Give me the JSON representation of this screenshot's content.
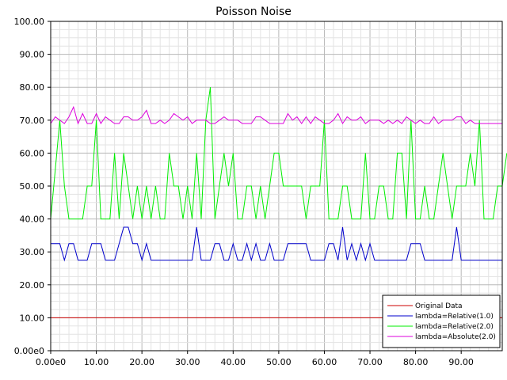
{
  "chart_data": {
    "type": "line",
    "title": "Poisson Noise",
    "xlabel": "",
    "ylabel": "",
    "xlim": [
      0,
      99
    ],
    "ylim": [
      0,
      100
    ],
    "x_ticks": [
      0,
      10,
      20,
      30,
      40,
      50,
      60,
      70,
      80,
      90
    ],
    "x_tick_labels": [
      "0.00e0",
      "10.00",
      "20.00",
      "30.00",
      "40.00",
      "50.00",
      "60.00",
      "70.00",
      "80.00",
      "90.00"
    ],
    "y_ticks": [
      0,
      10,
      20,
      30,
      40,
      50,
      60,
      70,
      80,
      90,
      100
    ],
    "y_tick_labels": [
      "0.00e0",
      "10.00",
      "20.00",
      "30.00",
      "40.00",
      "50.00",
      "60.00",
      "70.00",
      "80.00",
      "90.00",
      "100.00"
    ],
    "grid": true,
    "legend_position": "bottom-right",
    "series": [
      {
        "name": "Original Data",
        "color": "#cc0000",
        "values": [
          10,
          10,
          10,
          10,
          10,
          10,
          10,
          10,
          10,
          10,
          10,
          10,
          10,
          10,
          10,
          10,
          10,
          10,
          10,
          10,
          10,
          10,
          10,
          10,
          10,
          10,
          10,
          10,
          10,
          10,
          10,
          10,
          10,
          10,
          10,
          10,
          10,
          10,
          10,
          10,
          10,
          10,
          10,
          10,
          10,
          10,
          10,
          10,
          10,
          10,
          10,
          10,
          10,
          10,
          10,
          10,
          10,
          10,
          10,
          10,
          10,
          10,
          10,
          10,
          10,
          10,
          10,
          10,
          10,
          10,
          10,
          10,
          10,
          10,
          10,
          10,
          10,
          10,
          10,
          10,
          10,
          10,
          10,
          10,
          10,
          10,
          10,
          10,
          10,
          10,
          10,
          10,
          10,
          10,
          10,
          10,
          10,
          10,
          10,
          10
        ]
      },
      {
        "name": "lambda=Relative(1.0)",
        "color": "#0000cc",
        "values": [
          32.5,
          32.5,
          32.5,
          27.5,
          32.5,
          32.5,
          27.5,
          27.5,
          27.5,
          32.5,
          32.5,
          32.5,
          27.5,
          27.5,
          27.5,
          32.5,
          37.5,
          37.5,
          32.5,
          32.5,
          27.5,
          32.5,
          27.5,
          27.5,
          27.5,
          27.5,
          27.5,
          27.5,
          27.5,
          27.5,
          27.5,
          27.5,
          37.5,
          27.5,
          27.5,
          27.5,
          32.5,
          32.5,
          27.5,
          27.5,
          32.5,
          27.5,
          27.5,
          32.5,
          27.5,
          32.5,
          27.5,
          27.5,
          32.5,
          27.5,
          27.5,
          27.5,
          32.5,
          32.5,
          32.5,
          32.5,
          32.5,
          27.5,
          27.5,
          27.5,
          27.5,
          32.5,
          32.5,
          27.5,
          37.5,
          27.5,
          32.5,
          27.5,
          32.5,
          27.5,
          32.5,
          27.5,
          27.5,
          27.5,
          27.5,
          27.5,
          27.5,
          27.5,
          27.5,
          32.5,
          32.5,
          32.5,
          27.5,
          27.5,
          27.5,
          27.5,
          27.5,
          27.5,
          27.5,
          37.5,
          27.5,
          27.5,
          27.5,
          27.5,
          27.5,
          27.5,
          27.5,
          27.5,
          27.5,
          27.5
        ]
      },
      {
        "name": "lambda=Relative(2.0)",
        "color": "#00ee00",
        "values": [
          40,
          55,
          70,
          50,
          40,
          40,
          40,
          40,
          50,
          50,
          70,
          40,
          40,
          40,
          60,
          40,
          60,
          50,
          40,
          50,
          40,
          50,
          40,
          50,
          40,
          40,
          60,
          50,
          50,
          40,
          50,
          40,
          60,
          40,
          70,
          80,
          40,
          50,
          60,
          50,
          60,
          40,
          40,
          50,
          50,
          40,
          50,
          40,
          50,
          60,
          60,
          50,
          50,
          50,
          50,
          50,
          40,
          50,
          50,
          50,
          70,
          40,
          40,
          40,
          50,
          50,
          40,
          40,
          40,
          60,
          40,
          40,
          50,
          50,
          40,
          40,
          60,
          60,
          40,
          70,
          40,
          40,
          50,
          40,
          40,
          50,
          60,
          50,
          40,
          50,
          50,
          50,
          60,
          50,
          70,
          40,
          40,
          40,
          50,
          50,
          60
        ]
      },
      {
        "name": "lambda=Absolute(2.0)",
        "color": "#dd00dd",
        "values": [
          69,
          71,
          70,
          69,
          71,
          74,
          69,
          72,
          69,
          69,
          72,
          69,
          71,
          70,
          69,
          69,
          71,
          71,
          70,
          70,
          71,
          73,
          69,
          69,
          70,
          69,
          70,
          72,
          71,
          70,
          71,
          69,
          70,
          70,
          70,
          69,
          69,
          70,
          71,
          70,
          70,
          70,
          69,
          69,
          69,
          71,
          71,
          70,
          69,
          69,
          69,
          69,
          72,
          70,
          71,
          69,
          71,
          69,
          71,
          70,
          69,
          69,
          70,
          72,
          69,
          71,
          70,
          70,
          71,
          69,
          70,
          70,
          70,
          69,
          70,
          69,
          70,
          69,
          71,
          70,
          69,
          70,
          69,
          69,
          71,
          69,
          70,
          70,
          70,
          71,
          71,
          69,
          70,
          69,
          69,
          69,
          69,
          69,
          69,
          69
        ]
      }
    ]
  }
}
